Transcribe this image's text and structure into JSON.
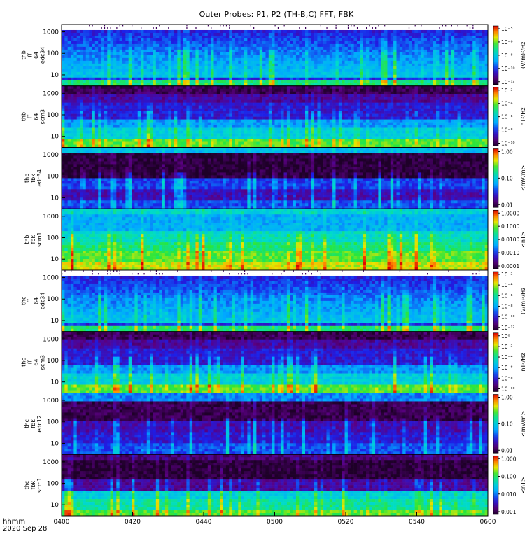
{
  "figure": {
    "title": "Outer Probes: P1, P2 (TH-B,C) FFT, FBK",
    "time_label": "hhmm",
    "date_label": "2020 Sep 28"
  },
  "chart_data": [
    {
      "type": "heatmap",
      "id": "thb-ff-e",
      "panel_label": [
        "thb",
        "ff",
        "64",
        "edc34"
      ],
      "y_ticks": [
        "10",
        "100",
        "1000"
      ],
      "y_scale": "log",
      "cbar_label": "(V/m)²/Hz",
      "cbar_ticks": [
        "10⁻¹²",
        "10⁻¹⁰",
        "10⁻⁸",
        "10⁻⁶",
        "10⁻⁵"
      ],
      "style": "ffe"
    },
    {
      "type": "heatmap",
      "id": "thb-ff-b",
      "panel_label": [
        "thb",
        "ff",
        "64",
        "scm3"
      ],
      "y_ticks": [
        "10",
        "100",
        "1000"
      ],
      "y_scale": "log",
      "cbar_label": "nT²/Hz",
      "cbar_ticks": [
        "10⁻¹⁰",
        "10⁻⁸",
        "10⁻⁶",
        "10⁻⁴",
        "10⁻²"
      ],
      "style": "ffb"
    },
    {
      "type": "heatmap",
      "id": "thb-fb-e",
      "panel_label": [
        "thb",
        "fbk",
        "edc34"
      ],
      "y_ticks": [
        "10",
        "100",
        "1000"
      ],
      "y_scale": "log",
      "cbar_label": "<mV/m>",
      "cbar_ticks": [
        "0.01",
        "0.10",
        "1.00"
      ],
      "style": "fbe"
    },
    {
      "type": "heatmap",
      "id": "thb-fb-b",
      "panel_label": [
        "thb",
        "fbk",
        "scm1"
      ],
      "y_ticks": [
        "10",
        "100",
        "1000"
      ],
      "y_scale": "log",
      "cbar_label": "<nT>",
      "cbar_ticks": [
        "0.0001",
        "0.0010",
        "0.0100",
        "0.1000",
        "1.0000"
      ],
      "style": "fbb"
    },
    {
      "type": "heatmap",
      "id": "thc-ff-e",
      "panel_label": [
        "thc",
        "ff",
        "64",
        "edc34"
      ],
      "y_ticks": [
        "10",
        "100",
        "1000"
      ],
      "y_scale": "log",
      "cbar_label": "(V/m)²/Hz",
      "cbar_ticks": [
        "10⁻¹²",
        "10⁻¹⁰",
        "10⁻⁸",
        "10⁻⁶",
        "10⁻⁴",
        "10⁻²"
      ],
      "style": "ffe"
    },
    {
      "type": "heatmap",
      "id": "thc-ff-b",
      "panel_label": [
        "thc",
        "ff",
        "64",
        "scm3"
      ],
      "y_ticks": [
        "10",
        "100",
        "1000"
      ],
      "y_scale": "log",
      "cbar_label": "nT²/Hz",
      "cbar_ticks": [
        "10⁻¹⁰",
        "10⁻⁸",
        "10⁻⁶",
        "10⁻⁴",
        "10⁻²",
        "10⁰"
      ],
      "style": "ffb"
    },
    {
      "type": "heatmap",
      "id": "thc-fb-e",
      "panel_label": [
        "thc",
        "fbk",
        "edc12"
      ],
      "y_ticks": [
        "10",
        "100",
        "1000"
      ],
      "y_scale": "log",
      "cbar_label": "<mV/m>",
      "cbar_ticks": [
        "0.01",
        "0.10",
        "1.00"
      ],
      "style": "fbe2"
    },
    {
      "type": "heatmap",
      "id": "thc-fb-b",
      "panel_label": [
        "thc",
        "fbk",
        "scm1"
      ],
      "y_ticks": [
        "10",
        "100",
        "1000"
      ],
      "y_scale": "log",
      "cbar_label": "<nT>",
      "cbar_ticks": [
        "0.001",
        "0.010",
        "0.100",
        "1.000"
      ],
      "style": "fbb2"
    }
  ],
  "x_axis": {
    "ticks": [
      "0400",
      "0420",
      "0440",
      "0500",
      "0520",
      "0540",
      "0600"
    ]
  },
  "colors": {
    "axis": "#000000",
    "background": "#ffffff"
  }
}
